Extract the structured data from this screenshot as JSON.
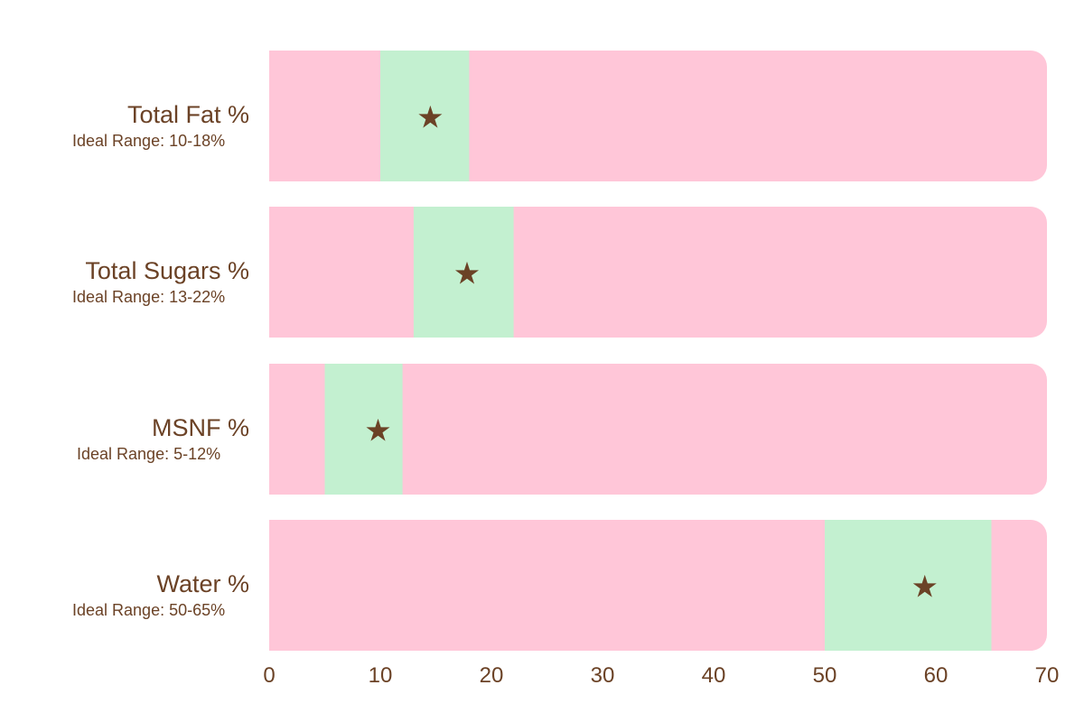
{
  "chart_data": {
    "type": "bar",
    "orientation": "horizontal",
    "xlim": [
      0,
      70
    ],
    "x_ticks": [
      0,
      10,
      20,
      30,
      40,
      50,
      60,
      70
    ],
    "grid": false,
    "legend": "none",
    "colors": {
      "background": "#ffc6d8",
      "ideal_range": "#c3f0d0",
      "marker": "#6b4226",
      "text": "#6b4226"
    },
    "marker_symbol": "★",
    "rows": [
      {
        "label": "Total Fat %",
        "sublabel": "Ideal Range: 10-18%",
        "range_min": 10,
        "range_max": 18,
        "value": 14.5
      },
      {
        "label": "Total Sugars %",
        "sublabel": "Ideal Range: 13-22%",
        "range_min": 13,
        "range_max": 22,
        "value": 17.8
      },
      {
        "label": "MSNF %",
        "sublabel": "Ideal Range: 5-12%",
        "range_min": 5,
        "range_max": 12,
        "value": 9.8
      },
      {
        "label": "Water %",
        "sublabel": "Ideal Range: 50-65%",
        "range_min": 50,
        "range_max": 65,
        "value": 59
      }
    ]
  }
}
